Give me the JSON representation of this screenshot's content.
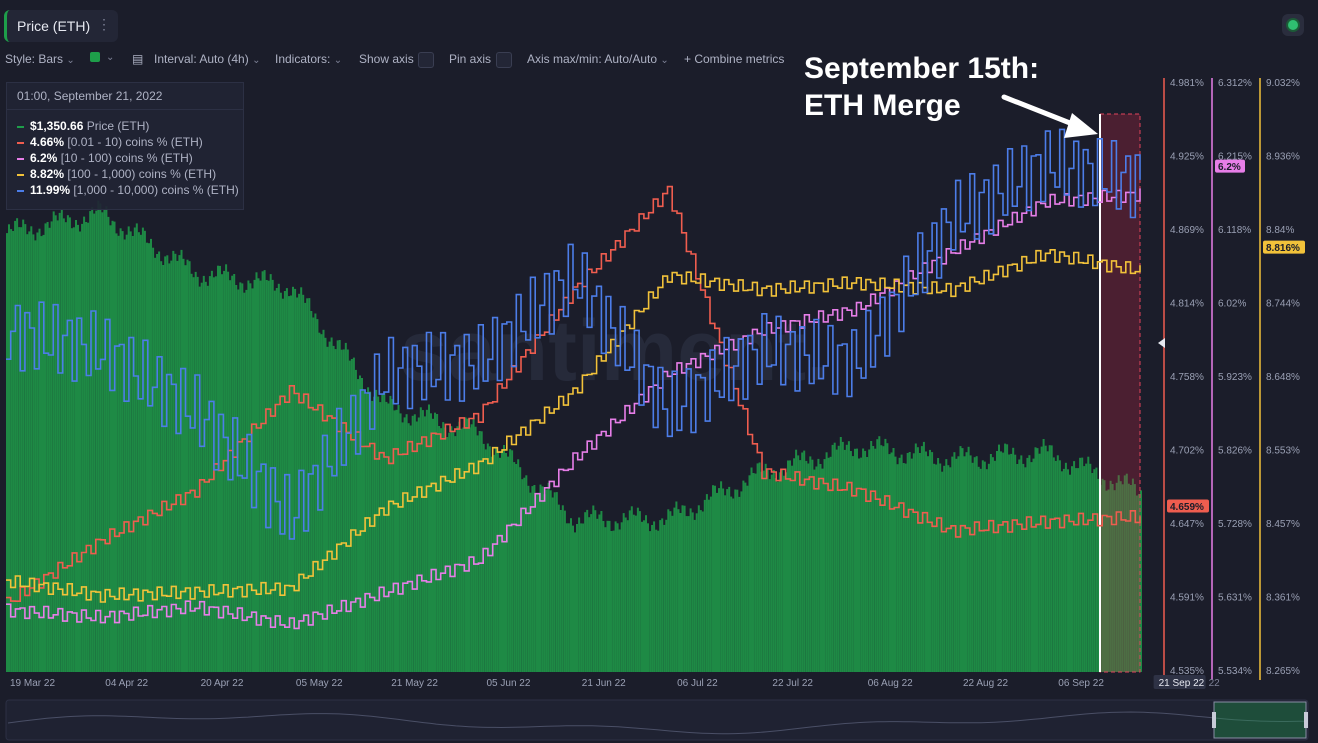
{
  "header": {
    "tab_label": "Price (ETH)",
    "tab_menu_icon": "vertical-dots-icon",
    "status_icon": "status-dot-icon"
  },
  "toolbar": {
    "style": "Style: Bars",
    "interval": "Interval: Auto (4h)",
    "indicators": "Indicators:",
    "show_axis": "Show axis",
    "pin_axis": "Pin axis",
    "axis_maxmin": "Axis max/min: Auto/Auto",
    "combine": "+ Combine metrics",
    "calendar_icon": "calendar-icon",
    "chevron_icon": "chevron-down-icon"
  },
  "tooltip": {
    "timestamp": "01:00, September 21, 2022",
    "rows": [
      {
        "value": "$1,350.66",
        "name": "Price (ETH)",
        "color": "#1e9e4a"
      },
      {
        "value": "4.66%",
        "name": "[0.01 - 10) coins % (ETH)",
        "color": "#ef5d4f"
      },
      {
        "value": "6.2%",
        "name": "[10 - 100) coins % (ETH)",
        "color": "#e77ee8"
      },
      {
        "value": "8.82%",
        "name": "[100 - 1,000) coins % (ETH)",
        "color": "#f2c23a"
      },
      {
        "value": "11.99%",
        "name": "[1,000 - 10,000) coins % (ETH)",
        "color": "#4c7de8"
      }
    ]
  },
  "annotation": {
    "text": "September 15th:\nETH Merge"
  },
  "watermark": "santiment.",
  "chart_data": {
    "type": "line",
    "title": "",
    "x": [
      "19 Mar 22",
      "04 Apr 22",
      "20 Apr 22",
      "05 May 22",
      "21 May 22",
      "05 Jun 22",
      "21 Jun 22",
      "06 Jul 22",
      "22 Jul 22",
      "06 Aug 22",
      "22 Aug 22",
      "06 Sep 22",
      "21 Sep 22"
    ],
    "x_tick_labels": [
      "19 Mar 22",
      "04 Apr 22",
      "20 Apr 22",
      "05 May 22",
      "21 May 22",
      "05 Jun 22",
      "21 Jun 22",
      "06 Jul 22",
      "22 Jul 22",
      "06 Aug 22",
      "22 Aug 22",
      "06 Sep 22",
      "21 Sep 22"
    ],
    "highlight_x": "21 Sep 22",
    "highlight_tail": "22",
    "grid": false,
    "series": [
      {
        "name": "Price (ETH)",
        "style": "bars",
        "color": "#1e9e4a",
        "values": [
          3300,
          3450,
          3000,
          2900,
          2000,
          1800,
          1150,
          1150,
          1500,
          1700,
          1600,
          1650,
          1350
        ]
      },
      {
        "name": "[0.01 - 10) coins % (ETH)",
        "axis": "a1",
        "color": "#ef5d4f",
        "values": [
          4.59,
          4.64,
          4.68,
          4.76,
          4.705,
          4.74,
          4.84,
          4.92,
          4.695,
          4.68,
          4.648,
          4.655,
          4.659
        ]
      },
      {
        "name": "[10 - 100) coins % (ETH)",
        "axis": "a2",
        "color": "#e77ee8",
        "values": [
          5.62,
          5.61,
          5.625,
          5.6,
          5.645,
          5.69,
          5.83,
          5.95,
          6.01,
          6.04,
          6.12,
          6.19,
          6.2
        ]
      },
      {
        "name": "[100 - 1,000) coins % (ETH)",
        "axis": "a3",
        "color": "#f2c23a",
        "values": [
          8.39,
          8.37,
          8.375,
          8.38,
          8.49,
          8.55,
          8.65,
          8.81,
          8.79,
          8.8,
          8.79,
          8.84,
          8.816
        ]
      },
      {
        "name": "[1,000 - 10,000) coins % (ETH)",
        "color": "#4c7de8",
        "values": [
          11.75,
          11.72,
          11.62,
          11.45,
          11.68,
          11.7,
          11.84,
          11.62,
          11.72,
          11.7,
          11.93,
          12.02,
          11.99
        ]
      }
    ],
    "axes": {
      "a1": {
        "color": "#ef5d4f",
        "ticks": [
          "4.981%",
          "4.925%",
          "4.869%",
          "4.814%",
          "4.758%",
          "4.702%",
          "4.647%",
          "4.591%",
          "4.535%"
        ],
        "current": "4.659%",
        "ylim": [
          4.535,
          4.981
        ]
      },
      "a2": {
        "color": "#e77ee8",
        "ticks": [
          "6.312%",
          "6.215%",
          "6.118%",
          "6.02%",
          "5.923%",
          "5.826%",
          "5.728%",
          "5.631%",
          "5.534%"
        ],
        "current": "6.2%",
        "ylim": [
          5.534,
          6.312
        ]
      },
      "a3": {
        "color": "#f2c23a",
        "ticks": [
          "9.032%",
          "8.936%",
          "8.84%",
          "8.744%",
          "8.648%",
          "8.553%",
          "8.457%",
          "8.361%",
          "8.265%"
        ],
        "current": "8.816%",
        "ylim": [
          8.265,
          9.032
        ]
      }
    },
    "blue_ylim": [
      11.2,
      12.1
    ],
    "price_ylim": [
      0,
      4000
    ]
  }
}
